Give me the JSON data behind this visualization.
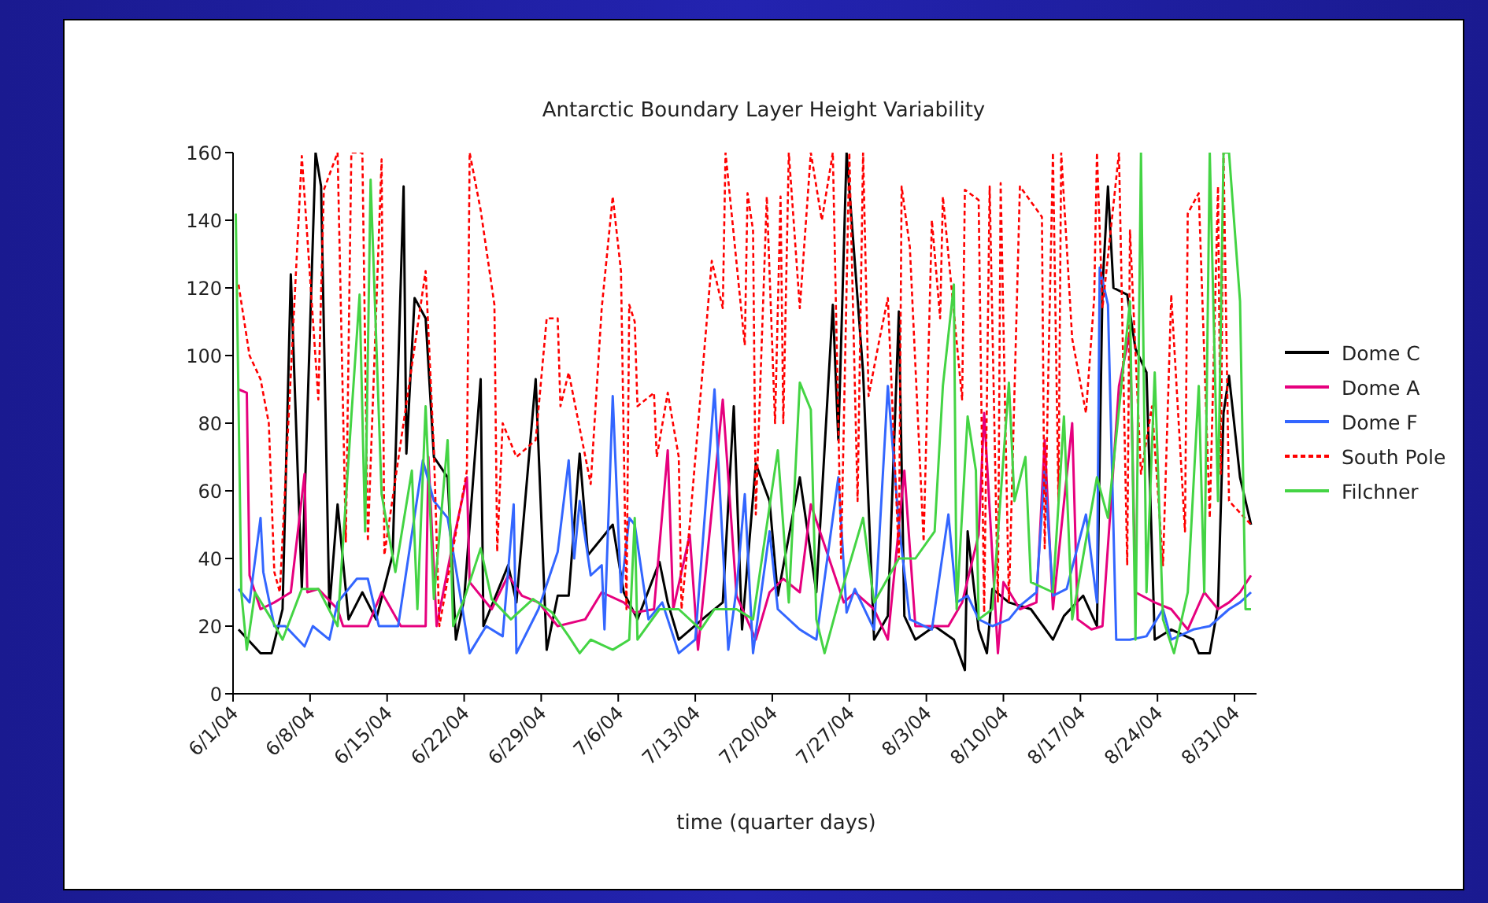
{
  "chart_data": {
    "type": "line",
    "title": "Antarctic Boundary Layer Height Variability",
    "xlabel": "time (quarter days)",
    "xlim": [
      "--06-01",
      "--09-02"
    ],
    "xticks": [
      {
        "value": "--06-01",
        "label": "6/1/04"
      },
      {
        "value": "--06-08",
        "label": "6/8/04"
      },
      {
        "value": "--06-15",
        "label": "6/15/04"
      },
      {
        "value": "--06-22",
        "label": "6/22/04"
      },
      {
        "value": "--06-29",
        "label": "6/29/04"
      },
      {
        "value": "--07-06",
        "label": "7/6/04"
      },
      {
        "value": "--07-13",
        "label": "7/13/04"
      },
      {
        "value": "--07-20",
        "label": "7/20/04"
      },
      {
        "value": "--07-27",
        "label": "7/27/04"
      },
      {
        "value": "--08-03",
        "label": "8/3/04"
      },
      {
        "value": "--08-10",
        "label": "8/10/04"
      },
      {
        "value": "--08-17",
        "label": "8/17/04"
      },
      {
        "value": "--08-24",
        "label": "8/24/04"
      },
      {
        "value": "--08-31",
        "label": "8/31/04"
      }
    ],
    "ylim": [
      0,
      160
    ],
    "yticks": [
      0,
      20,
      40,
      60,
      80,
      100,
      120,
      140,
      160
    ],
    "grid": false,
    "legend": "right",
    "line_style": "solid",
    "series": [
      {
        "name": "Dome C",
        "color": "#000000",
        "x": [
          "--06-01T12:00",
          "--06-03T12:00",
          "--06-04T12:00",
          "--06-05T12:00",
          "--06-06T06:00",
          "--06-07T06:00",
          "--06-08T12:00",
          "--06-09T00:00",
          "--06-09T18:00",
          "--06-10T12:00",
          "--06-11T12:00",
          "--06-12T18:00",
          "--06-14T00:00",
          "--06-15T12:00",
          "--06-16T12:00",
          "--06-16T18:00",
          "--06-17T12:00",
          "--06-18T12:00",
          "--06-19T06:00",
          "--06-20T12:00",
          "--06-21T06:00",
          "--06-22T00:00",
          "--06-23T12:00",
          "--06-23T18:00",
          "--06-26T00:00",
          "--06-26T18:00",
          "--06-28T12:00",
          "--06-29T12:00",
          "--06-30T12:00",
          "--07-01T12:00",
          "--07-02T12:00",
          "--07-03T06:00",
          "--07-05T12:00",
          "--07-06T12:00",
          "--07-07T18:00",
          "--07-09T18:00",
          "--07-10T12:00",
          "--07-11T12:00",
          "--07-14T00:00",
          "--07-15T12:00",
          "--07-16T12:00",
          "--07-17T06:00",
          "--07-18T12:00",
          "--07-19T18:00",
          "--07-20T12:00",
          "--07-22T12:00",
          "--07-24T00:00",
          "--07-25T12:00",
          "--07-26T00:00",
          "--07-26T18:00",
          "--07-28T06:00",
          "--07-29T06:00",
          "--07-30T12:00",
          "--07-31T12:00",
          "--08-01T00:00",
          "--08-02T00:00",
          "--08-03T18:00",
          "--08-05T12:00",
          "--08-06T12:00",
          "--08-06T18:00",
          "--08-07T18:00",
          "--08-08T12:00",
          "--08-09T00:00",
          "--08-10T12:00",
          "--08-12T12:00",
          "--08-14T12:00",
          "--08-15T12:00",
          "--08-17T06:00",
          "--08-18T12:00",
          "--08-19T00:00",
          "--08-19T12:00",
          "--08-20T00:00",
          "--08-21T06:00",
          "--08-22T00:00",
          "--08-23T00:00",
          "--08-23T18:00",
          "--08-25T06:00",
          "--08-27T06:00",
          "--08-27T18:00",
          "--08-28T18:00",
          "--08-29T12:00",
          "--08-30T00:00",
          "--08-30T12:00",
          "--08-31T12:00",
          "--09-01T12:00"
        ],
        "values": [
          19,
          12,
          12,
          25,
          124,
          31,
          160,
          150,
          25,
          56,
          22,
          30,
          22,
          41,
          150,
          71,
          117,
          111,
          70,
          64,
          16,
          28,
          93,
          20,
          38,
          27,
          93,
          13,
          29,
          29,
          71,
          41,
          50,
          30,
          22,
          39,
          27,
          16,
          23,
          27,
          85,
          19,
          68,
          57,
          29,
          64,
          30,
          115,
          75,
          160,
          95,
          16,
          23,
          113,
          23,
          16,
          20,
          16,
          7,
          48,
          19,
          12,
          31,
          27,
          25,
          16,
          23,
          29,
          20,
          120,
          150,
          120,
          118,
          102,
          95,
          16,
          19,
          16,
          12,
          12,
          26,
          83,
          94,
          64,
          50
        ]
      },
      {
        "name": "Dome A",
        "color": "#e6007e",
        "x": [
          "--06-01T12:00",
          "--06-02T06:00",
          "--06-02T12:00",
          "--06-03T12:00",
          "--06-04T18:00",
          "--06-06T06:00",
          "--06-07T12:00",
          "--06-07T18:00",
          "--06-08T18:00",
          "--06-10T12:00",
          "--06-11T00:00",
          "--06-13T06:00",
          "--06-14T12:00",
          "--06-16T06:00",
          "--06-18T12:00",
          "--06-18T18:00",
          "--06-19T12:00",
          "--06-21T00:00",
          "--06-22T06:00",
          "--06-22T12:00",
          "--06-24T12:00",
          "--06-26T00:00",
          "--06-27T06:00",
          "--06-28T18:00",
          "--06-30T12:00",
          "--07-03T00:00",
          "--07-04T12:00",
          "--07-06T12:00",
          "--07-07T12:00",
          "--07-09T06:00",
          "--07-10T12:00",
          "--07-11T00:00",
          "--07-12T12:00",
          "--07-13T06:00",
          "--07-15T12:00",
          "--07-16T18:00",
          "--07-18T12:00",
          "--07-19T18:00",
          "--07-21T00:00",
          "--07-22T12:00",
          "--07-23T12:00",
          "--07-26T12:00",
          "--07-27T12:00",
          "--07-29T06:00",
          "--07-30T12:00",
          "--08-01T00:00",
          "--08-02T00:00",
          "--08-03T12:00",
          "--08-05T00:00",
          "--08-06T06:00",
          "--08-07T18:00",
          "--08-08T06:00",
          "--08-09T12:00",
          "--08-10T00:00",
          "--08-11T12:00",
          "--08-13T00:00",
          "--08-13T18:00",
          "--08-14T12:00",
          "--08-16T06:00",
          "--08-16T18:00",
          "--08-18T00:00",
          "--08-19T00:00",
          "--08-20T12:00",
          "--08-21T12:00",
          "--08-22T00:00",
          "--08-23T18:00",
          "--08-25T06:00",
          "--08-26T18:00",
          "--08-28T06:00",
          "--08-29T12:00",
          "--08-30T12:00",
          "--08-31T12:00",
          "--09-01T12:00"
        ],
        "values": [
          90,
          89,
          35,
          25,
          27,
          30,
          65,
          30,
          31,
          25,
          20,
          20,
          30,
          20,
          20,
          70,
          20,
          45,
          64,
          33,
          25,
          35,
          29,
          27,
          20,
          22,
          30,
          27,
          24,
          25,
          72,
          25,
          47,
          13,
          87,
          29,
          16,
          30,
          34,
          30,
          56,
          27,
          30,
          25,
          16,
          66,
          20,
          20,
          20,
          27,
          47,
          83,
          12,
          33,
          25,
          27,
          75,
          25,
          80,
          22,
          19,
          20,
          91,
          107,
          30,
          27,
          25,
          19,
          30,
          25,
          27,
          30,
          35
        ]
      },
      {
        "name": "Dome F",
        "color": "#3366ff",
        "x": [
          "--06-01T12:00",
          "--06-02T12:00",
          "--06-03T12:00",
          "--06-03T18:00",
          "--06-04T18:00",
          "--06-05T18:00",
          "--06-07T12:00",
          "--06-08T06:00",
          "--06-09T18:00",
          "--06-10T12:00",
          "--06-12T06:00",
          "--06-13T06:00",
          "--06-14T06:00",
          "--06-16T00:00",
          "--06-18T06:00",
          "--06-19T06:00",
          "--06-20T12:00",
          "--06-22T12:00",
          "--06-24T00:00",
          "--06-25T12:00",
          "--06-26T12:00",
          "--06-26T18:00",
          "--06-28T18:00",
          "--06-30T12:00",
          "--07-01T12:00",
          "--07-02T00:00",
          "--07-02T12:00",
          "--07-03T12:00",
          "--07-04T12:00",
          "--07-04T18:00",
          "--07-05T12:00",
          "--07-06T06:00",
          "--07-07T00:00",
          "--07-07T12:00",
          "--07-08T18:00",
          "--07-10T00:00",
          "--07-11T12:00",
          "--07-13T00:00",
          "--07-14T18:00",
          "--07-16T00:00",
          "--07-16T18:00",
          "--07-17T12:00",
          "--07-18T06:00",
          "--07-19T18:00",
          "--07-20T12:00",
          "--07-22T12:00",
          "--07-24T00:00",
          "--07-26T00:00",
          "--07-26T18:00",
          "--07-27T12:00",
          "--07-29T06:00",
          "--07-30T12:00",
          "--07-31T12:00",
          "--08-01T12:00",
          "--08-03T12:00",
          "--08-05T00:00",
          "--08-05T18:00",
          "--08-06T18:00",
          "--08-07T18:00",
          "--08-09T00:00",
          "--08-10T12:00",
          "--08-11T12:00",
          "--08-13T00:00",
          "--08-13T18:00",
          "--08-14T12:00",
          "--08-15T18:00",
          "--08-17T12:00",
          "--08-18T12:00",
          "--08-18T18:00",
          "--08-19T12:00",
          "--08-20T06:00",
          "--08-21T12:00",
          "--08-23T00:00",
          "--08-24T12:00",
          "--08-25T06:00",
          "--08-27T06:00",
          "--08-28T18:00",
          "--08-30T12:00",
          "--08-31T12:00",
          "--09-01T12:00"
        ],
        "values": [
          31,
          27,
          52,
          36,
          20,
          20,
          14,
          20,
          16,
          27,
          34,
          34,
          20,
          20,
          69,
          57,
          52,
          12,
          20,
          17,
          56,
          12,
          25,
          42,
          69,
          40,
          57,
          35,
          38,
          19,
          88,
          30,
          52,
          50,
          22,
          27,
          12,
          16,
          90,
          13,
          31,
          59,
          12,
          48,
          25,
          19,
          16,
          64,
          24,
          31,
          19,
          91,
          50,
          22,
          19,
          53,
          27,
          29,
          22,
          20,
          22,
          26,
          30,
          66,
          29,
          31,
          53,
          27,
          126,
          115,
          16,
          16,
          17,
          25,
          16,
          19,
          20,
          25,
          27,
          30
        ]
      },
      {
        "name": "South Pole",
        "color": "#ff0000",
        "line_style": "dashed",
        "x": [
          "--06-01T12:00",
          "--06-02T12:00",
          "--06-03T12:00",
          "--06-04T06:00",
          "--06-04T18:00",
          "--06-05T06:00",
          "--06-07T06:00",
          "--06-08T18:00",
          "--06-09T06:00",
          "--06-10T12:00",
          "--06-11T06:00",
          "--06-11T18:00",
          "--06-12T18:00",
          "--06-13T06:00",
          "--06-14T12:00",
          "--06-14T18:00",
          "--06-18T12:00",
          "--06-19T06:00",
          "--06-19T18:00",
          "--06-22T06:00",
          "--06-22T12:00",
          "--06-23T12:00",
          "--06-24T18:00",
          "--06-25T00:00",
          "--06-25T12:00",
          "--06-26T18:00",
          "--06-28T12:00",
          "--06-29T12:00",
          "--06-30T12:00",
          "--06-30T18:00",
          "--07-01T12:00",
          "--07-03T12:00",
          "--07-04T12:00",
          "--07-05T12:00",
          "--07-06T06:00",
          "--07-06T18:00",
          "--07-07T00:00",
          "--07-07T12:00",
          "--07-07T18:00",
          "--07-09T06:00",
          "--07-09T12:00",
          "--07-10T12:00",
          "--07-11T12:00",
          "--07-11T18:00",
          "--07-12T12:00",
          "--07-14T12:00",
          "--07-15T12:00",
          "--07-15T18:00",
          "--07-17T12:00",
          "--07-17T18:00",
          "--07-18T06:00",
          "--07-18T12:00",
          "--07-19T12:00",
          "--07-20T06:00",
          "--07-20T18:00",
          "--07-21T00:00",
          "--07-21T12:00",
          "--07-22T12:00",
          "--07-23T12:00",
          "--07-24T12:00",
          "--07-25T12:00",
          "--07-26T06:00",
          "--07-27T00:00",
          "--07-27T18:00",
          "--07-28T06:00",
          "--07-28T18:00",
          "--07-29T18:00",
          "--07-30T12:00",
          "--07-31T12:00",
          "--07-31T18:00",
          "--08-01T12:00",
          "--08-02T18:00",
          "--08-03T12:00",
          "--08-04T06:00",
          "--08-04T12:00",
          "--08-06T06:00",
          "--08-06T12:00",
          "--08-07T18:00",
          "--08-08T06:00",
          "--08-08T18:00",
          "--08-09T12:00",
          "--08-09T18:00",
          "--08-10T12:00",
          "--08-11T12:00",
          "--08-13T12:00",
          "--08-13T18:00",
          "--08-14T12:00",
          "--08-15T00:00",
          "--08-15T06:00",
          "--08-16T06:00",
          "--08-17T12:00",
          "--08-18T06:00",
          "--08-18T12:00",
          "--08-19T00:00",
          "--08-20T12:00",
          "--08-21T06:00",
          "--08-21T12:00",
          "--08-22T12:00",
          "--08-23T12:00",
          "--08-24T12:00",
          "--08-25T06:00",
          "--08-26T12:00",
          "--08-26T18:00",
          "--08-27T18:00",
          "--08-28T18:00",
          "--08-29T12:00",
          "--08-29T18:00",
          "--08-30T00:00",
          "--08-30T12:00",
          "--09-01T12:00"
        ],
        "values": [
          121,
          100,
          93,
          80,
          36,
          30,
          159,
          87,
          149,
          160,
          45,
          160,
          160,
          45,
          158,
          41,
          125,
          72,
          20,
          66,
          160,
          143,
          115,
          42,
          80,
          70,
          75,
          111,
          111,
          85,
          95,
          62,
          114,
          147,
          125,
          25,
          115,
          110,
          85,
          89,
          70,
          89,
          70,
          25,
          50,
          128,
          114,
          160,
          103,
          148,
          137,
          53,
          147,
          80,
          147,
          80,
          160,
          114,
          160,
          140,
          160,
          40,
          160,
          57,
          160,
          88,
          105,
          117,
          40,
          150,
          132,
          45,
          140,
          111,
          147,
          87,
          149,
          146,
          24,
          150,
          27,
          151,
          27,
          150,
          141,
          43,
          160,
          57,
          160,
          105,
          83,
          117,
          160,
          114,
          160,
          38,
          137,
          65,
          85,
          38,
          118,
          48,
          142,
          148,
          52,
          150,
          65,
          160,
          57,
          50
        ]
      },
      {
        "name": "Filchner",
        "color": "#44d444",
        "x": [
          "--06-01T06:00",
          "--06-01T18:00",
          "--06-02T06:00",
          "--06-03T00:00",
          "--06-04T12:00",
          "--06-05T12:00",
          "--06-07T06:00",
          "--06-08T18:00",
          "--06-10T12:00",
          "--06-11T18:00",
          "--06-12T12:00",
          "--06-13T00:00",
          "--06-13T12:00",
          "--06-14T12:00",
          "--06-15T18:00",
          "--06-17T06:00",
          "--06-17T18:00",
          "--06-18T12:00",
          "--06-19T06:00",
          "--06-20T12:00",
          "--06-21T00:00",
          "--06-22T00:00",
          "--06-23T12:00",
          "--06-24T12:00",
          "--06-26T06:00",
          "--06-28T06:00",
          "--06-30T00:00",
          "--07-01T12:00",
          "--07-02T12:00",
          "--07-03T12:00",
          "--07-05T12:00",
          "--07-07T00:00",
          "--07-07T12:00",
          "--07-07T18:00",
          "--07-09T18:00",
          "--07-11T12:00",
          "--07-13T12:00",
          "--07-14T18:00",
          "--07-16T18:00",
          "--07-18T06:00",
          "--07-20T12:00",
          "--07-21T12:00",
          "--07-22T12:00",
          "--07-23T12:00",
          "--07-24T00:00",
          "--07-24T18:00",
          "--07-26T00:00",
          "--07-28T06:00",
          "--07-29T06:00",
          "--07-31T12:00",
          "--08-02T00:00",
          "--08-03T18:00",
          "--08-04T12:00",
          "--08-05T12:00",
          "--08-05T18:00",
          "--08-06T18:00",
          "--08-07T12:00",
          "--08-07T18:00",
          "--08-09T00:00",
          "--08-10T12:00",
          "--08-11T00:00",
          "--08-12T00:00",
          "--08-12T12:00",
          "--08-14T12:00",
          "--08-15T12:00",
          "--08-16T06:00",
          "--08-18T12:00",
          "--08-19T12:00",
          "--08-21T12:00",
          "--08-22T00:00",
          "--08-22T12:00",
          "--08-23T00:00",
          "--08-23T18:00",
          "--08-24T12:00",
          "--08-25T12:00",
          "--08-26T18:00",
          "--08-27T18:00",
          "--08-28T06:00",
          "--08-28T18:00",
          "--08-29T12:00",
          "--08-30T00:00",
          "--08-30T12:00",
          "--08-31T12:00",
          "--09-01T00:00",
          "--09-01T12:00"
        ],
        "values": [
          142,
          30,
          13,
          30,
          22,
          16,
          31,
          31,
          20,
          82,
          118,
          48,
          152,
          59,
          36,
          66,
          25,
          85,
          28,
          75,
          20,
          28,
          43,
          28,
          22,
          28,
          24,
          17,
          12,
          16,
          13,
          16,
          52,
          16,
          25,
          25,
          19,
          25,
          25,
          22,
          72,
          27,
          92,
          84,
          22,
          12,
          27,
          52,
          27,
          40,
          40,
          48,
          91,
          121,
          25,
          82,
          66,
          22,
          25,
          92,
          57,
          70,
          33,
          30,
          82,
          22,
          64,
          52,
          116,
          16,
          160,
          30,
          95,
          22,
          12,
          30,
          91,
          30,
          160,
          57,
          160,
          160,
          116,
          25,
          25
        ]
      }
    ]
  }
}
